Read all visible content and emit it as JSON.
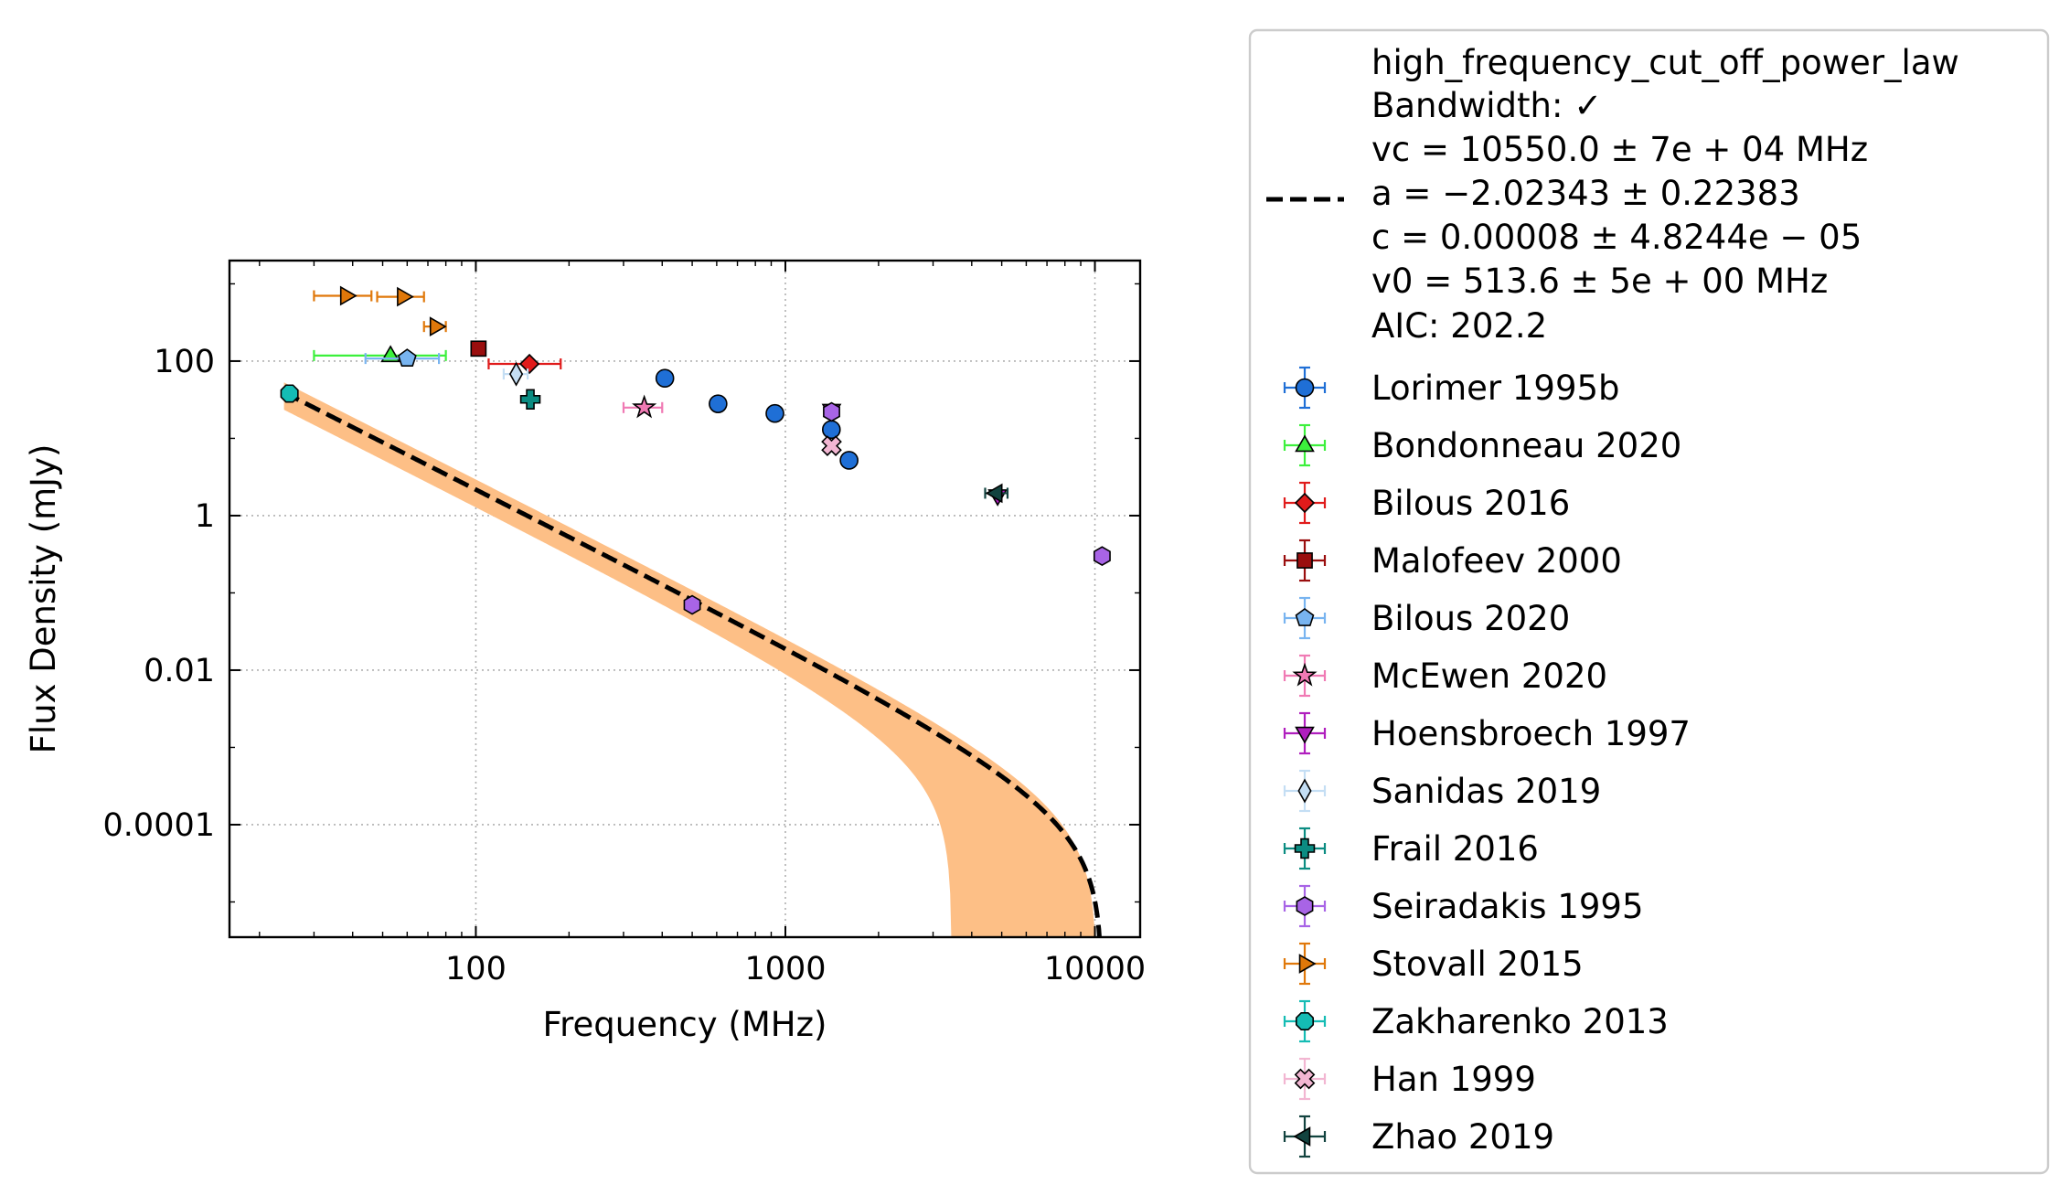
{
  "chart_data": {
    "type": "scatter",
    "xlabel": "Frequency (MHz)",
    "ylabel": "Flux Density (mJy)",
    "x_scale": "log",
    "y_scale": "log",
    "xlim": [
      16,
      14000
    ],
    "ylim": [
      3.5e-06,
      2000
    ],
    "x_ticks": [
      {
        "value": 100,
        "label": "100"
      },
      {
        "value": 1000,
        "label": "1000"
      },
      {
        "value": 10000,
        "label": "10000"
      }
    ],
    "y_ticks": [
      {
        "value": 0.0001,
        "label": "0.0001"
      },
      {
        "value": 0.01,
        "label": "0.01"
      },
      {
        "value": 1,
        "label": "1"
      },
      {
        "value": 100,
        "label": "100"
      }
    ],
    "grid": true,
    "legend_position": "outside-right",
    "fit": {
      "model": "high_frequency_cut_off_power_law",
      "lines": [
        "high_frequency_cut_off_power_law",
        "Bandwidth: ✓",
        "vc = 10550.0 ± 7e + 04 MHz",
        "a = −2.02343 ± 0.22383",
        "c = 0.00008 ± 4.8244e − 05",
        "v0 = 513.6 ± 5e + 00 MHz",
        "AIC: 202.2"
      ],
      "params": {
        "vc": 10550.0,
        "a": -2.02343,
        "c": 8e-05,
        "v0": 513.6
      },
      "line_color": "#000000",
      "band_color": "#fdbf86"
    },
    "series": [
      {
        "name": "Lorimer 1995b",
        "marker": "circle",
        "color": "#1f6fd6",
        "points": [
          {
            "x": 408,
            "y": 60
          },
          {
            "x": 606,
            "y": 28
          },
          {
            "x": 925,
            "y": 21
          },
          {
            "x": 1408,
            "y": 13
          },
          {
            "x": 1606,
            "y": 5.2
          }
        ]
      },
      {
        "name": "Bondonneau 2020",
        "marker": "triangle-up",
        "color": "#3cf03c",
        "points": [
          {
            "x": 53,
            "y": 118,
            "xerr": [
              23,
              27
            ]
          }
        ]
      },
      {
        "name": "Bilous 2016",
        "marker": "diamond",
        "color": "#e01b1b",
        "points": [
          {
            "x": 149,
            "y": 92,
            "xerr": [
              39,
              39
            ]
          }
        ]
      },
      {
        "name": "Malofeev 2000",
        "marker": "square",
        "color": "#9a0e0e",
        "points": [
          {
            "x": 102,
            "y": 145
          }
        ]
      },
      {
        "name": "Bilous 2020",
        "marker": "pentagon",
        "color": "#78b4f0",
        "points": [
          {
            "x": 60,
            "y": 108,
            "xerr": [
              16,
              16
            ]
          }
        ]
      },
      {
        "name": "McEwen 2020",
        "marker": "star",
        "color": "#f07ab4",
        "points": [
          {
            "x": 350,
            "y": 25,
            "xerr": [
              50,
              50
            ]
          }
        ]
      },
      {
        "name": "Hoensbroech 1997",
        "marker": "triangle-down",
        "color": "#b01ebe",
        "points": [
          {
            "x": 1410,
            "y": 23
          },
          {
            "x": 4850,
            "y": 1.8
          }
        ]
      },
      {
        "name": "Sanidas 2019",
        "marker": "thin-diamond",
        "color": "#c4def4",
        "points": [
          {
            "x": 135,
            "y": 68,
            "xerr": [
              12,
              12
            ]
          }
        ]
      },
      {
        "name": "Frail 2016",
        "marker": "plus",
        "color": "#0b8c82",
        "points": [
          {
            "x": 150,
            "y": 32
          }
        ]
      },
      {
        "name": "Seiradakis 1995",
        "marker": "hexagon",
        "color": "#a864e6",
        "points": [
          {
            "x": 1410,
            "y": 22
          },
          {
            "x": 10550,
            "y": 0.3
          },
          {
            "x": 500,
            "y": 0.07
          }
        ]
      },
      {
        "name": "Stovall 2015",
        "marker": "triangle-right",
        "color": "#e0780a",
        "points": [
          {
            "x": 38,
            "y": 700,
            "xerr": [
              8,
              8
            ]
          },
          {
            "x": 58,
            "y": 680,
            "xerr": [
              10,
              10
            ]
          },
          {
            "x": 74,
            "y": 280,
            "xerr": [
              6,
              6
            ]
          }
        ]
      },
      {
        "name": "Zakharenko 2013",
        "marker": "octagon",
        "color": "#14bcb4",
        "points": [
          {
            "x": 25,
            "y": 38
          }
        ]
      },
      {
        "name": "Han 1999",
        "marker": "x",
        "color": "#f2b6d2",
        "points": [
          {
            "x": 1410,
            "y": 8
          }
        ]
      },
      {
        "name": "Zhao 2019",
        "marker": "triangle-left",
        "color": "#12433f",
        "points": [
          {
            "x": 4820,
            "y": 1.95,
            "xerr": [
              400,
              400
            ]
          }
        ]
      }
    ]
  }
}
